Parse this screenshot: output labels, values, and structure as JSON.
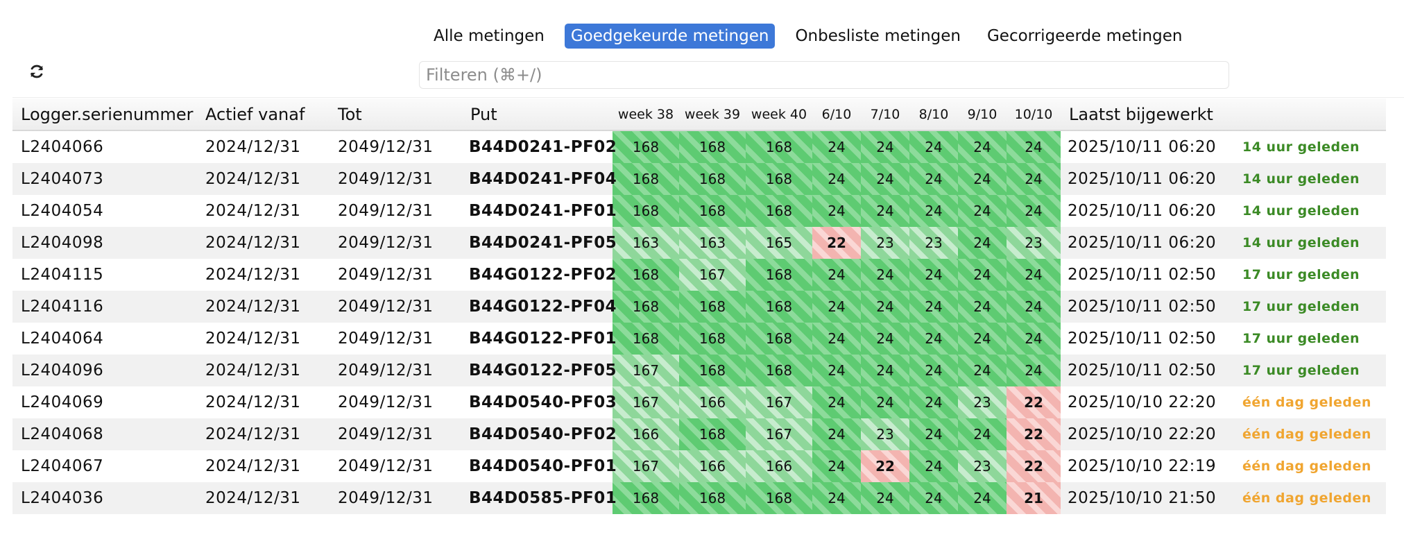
{
  "tabs": [
    {
      "label": "Alle metingen",
      "active": false
    },
    {
      "label": "Goedgekeurde metingen",
      "active": true
    },
    {
      "label": "Onbesliste metingen",
      "active": false
    },
    {
      "label": "Gecorrigeerde metingen",
      "active": false
    }
  ],
  "toolbar": {
    "refresh_icon": "refresh-icon"
  },
  "filter": {
    "placeholder": "Filteren (⌘+/)",
    "value": ""
  },
  "colors": {
    "accent": "#3d78d8",
    "good": "#5ecb72",
    "bad": "#f3b4b0",
    "recent": "#3b8a25",
    "stale": "#f0a530"
  },
  "columns": [
    "Logger.serienummer",
    "Actief vanaf",
    "Tot",
    "Put",
    "week 38",
    "week 39",
    "week 40",
    "6/10",
    "7/10",
    "8/10",
    "9/10",
    "10/10",
    "Laatst bijgewerkt"
  ],
  "rows": [
    {
      "serial": "L2404066",
      "from": "2024/12/31",
      "to": "2049/12/31",
      "put": "B44D0241-PF02",
      "counts": [
        "168",
        "168",
        "168",
        "24",
        "24",
        "24",
        "24",
        "24"
      ],
      "updated": "2025/10/11 06:20",
      "ago": "14 uur geleden"
    },
    {
      "serial": "L2404073",
      "from": "2024/12/31",
      "to": "2049/12/31",
      "put": "B44D0241-PF04",
      "counts": [
        "168",
        "168",
        "168",
        "24",
        "24",
        "24",
        "24",
        "24"
      ],
      "updated": "2025/10/11 06:20",
      "ago": "14 uur geleden"
    },
    {
      "serial": "L2404054",
      "from": "2024/12/31",
      "to": "2049/12/31",
      "put": "B44D0241-PF01",
      "counts": [
        "168",
        "168",
        "168",
        "24",
        "24",
        "24",
        "24",
        "24"
      ],
      "updated": "2025/10/11 06:20",
      "ago": "14 uur geleden"
    },
    {
      "serial": "L2404098",
      "from": "2024/12/31",
      "to": "2049/12/31",
      "put": "B44D0241-PF05",
      "counts": [
        "163",
        "163",
        "165",
        "22",
        "23",
        "23",
        "24",
        "23"
      ],
      "updated": "2025/10/11 06:20",
      "ago": "14 uur geleden"
    },
    {
      "serial": "L2404115",
      "from": "2024/12/31",
      "to": "2049/12/31",
      "put": "B44G0122-PF02",
      "counts": [
        "168",
        "167",
        "168",
        "24",
        "24",
        "24",
        "24",
        "24"
      ],
      "updated": "2025/10/11 02:50",
      "ago": "17 uur geleden"
    },
    {
      "serial": "L2404116",
      "from": "2024/12/31",
      "to": "2049/12/31",
      "put": "B44G0122-PF04",
      "counts": [
        "168",
        "168",
        "168",
        "24",
        "24",
        "24",
        "24",
        "24"
      ],
      "updated": "2025/10/11 02:50",
      "ago": "17 uur geleden"
    },
    {
      "serial": "L2404064",
      "from": "2024/12/31",
      "to": "2049/12/31",
      "put": "B44G0122-PF01",
      "counts": [
        "168",
        "168",
        "168",
        "24",
        "24",
        "24",
        "24",
        "24"
      ],
      "updated": "2025/10/11 02:50",
      "ago": "17 uur geleden"
    },
    {
      "serial": "L2404096",
      "from": "2024/12/31",
      "to": "2049/12/31",
      "put": "B44G0122-PF05",
      "counts": [
        "167",
        "168",
        "168",
        "24",
        "24",
        "24",
        "24",
        "24"
      ],
      "updated": "2025/10/11 02:50",
      "ago": "17 uur geleden"
    },
    {
      "serial": "L2404069",
      "from": "2024/12/31",
      "to": "2049/12/31",
      "put": "B44D0540-PF03",
      "counts": [
        "167",
        "166",
        "167",
        "24",
        "24",
        "24",
        "23",
        "22"
      ],
      "updated": "2025/10/10 22:20",
      "ago": "één dag geleden"
    },
    {
      "serial": "L2404068",
      "from": "2024/12/31",
      "to": "2049/12/31",
      "put": "B44D0540-PF02",
      "counts": [
        "166",
        "168",
        "167",
        "24",
        "23",
        "24",
        "24",
        "22"
      ],
      "updated": "2025/10/10 22:20",
      "ago": "één dag geleden"
    },
    {
      "serial": "L2404067",
      "from": "2024/12/31",
      "to": "2049/12/31",
      "put": "B44D0540-PF01",
      "counts": [
        "167",
        "166",
        "166",
        "24",
        "22",
        "24",
        "23",
        "22"
      ],
      "updated": "2025/10/10 22:19",
      "ago": "één dag geleden"
    },
    {
      "serial": "L2404036",
      "from": "2024/12/31",
      "to": "2049/12/31",
      "put": "B44D0585-PF01",
      "counts": [
        "168",
        "168",
        "168",
        "24",
        "24",
        "24",
        "24",
        "21"
      ],
      "updated": "2025/10/10 21:50",
      "ago": "één dag geleden"
    }
  ]
}
